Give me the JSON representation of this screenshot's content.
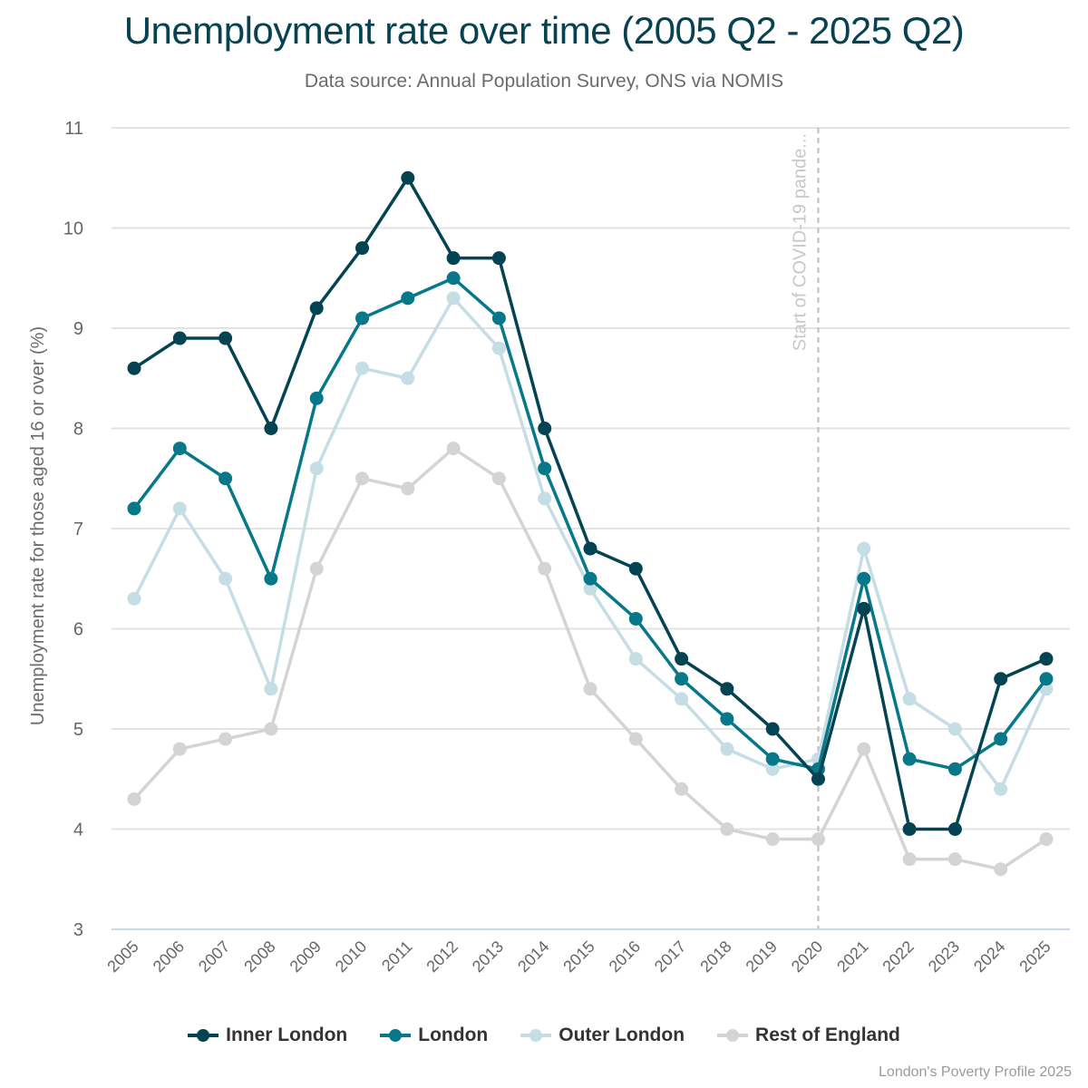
{
  "chart_data": {
    "type": "line",
    "title": "Unemployment rate over time (2005 Q2 - 2025 Q2)",
    "subtitle": "Data source: Annual Population Survey, ONS via NOMIS",
    "xlabel": "",
    "ylabel": "Unemployment rate for those aged 16 or over (%)",
    "ylim": [
      3,
      11
    ],
    "yticks": [
      3,
      4,
      5,
      6,
      7,
      8,
      9,
      10,
      11
    ],
    "grid": true,
    "legend_position": "bottom",
    "x": [
      "2005",
      "2006",
      "2007",
      "2008",
      "2009",
      "2010",
      "2011",
      "2012",
      "2013",
      "2014",
      "2015",
      "2016",
      "2017",
      "2018",
      "2019",
      "2020",
      "2021",
      "2022",
      "2023",
      "2024",
      "2025"
    ],
    "series": [
      {
        "name": "Rest of England",
        "color": "#d4d4d2",
        "values": [
          4.3,
          4.8,
          4.9,
          5.0,
          6.6,
          7.5,
          7.4,
          7.8,
          7.5,
          6.6,
          5.4,
          4.9,
          4.4,
          4.0,
          3.9,
          3.9,
          4.8,
          3.7,
          3.7,
          3.6,
          3.9
        ]
      },
      {
        "name": "Outer London",
        "color": "#c5dde4",
        "values": [
          6.3,
          7.2,
          6.5,
          5.4,
          7.6,
          8.6,
          8.5,
          9.3,
          8.8,
          7.3,
          6.4,
          5.7,
          5.3,
          4.8,
          4.6,
          4.7,
          6.8,
          5.3,
          5.0,
          4.4,
          5.4
        ]
      },
      {
        "name": "London",
        "color": "#06788a",
        "values": [
          7.2,
          7.8,
          7.5,
          6.5,
          8.3,
          9.1,
          9.3,
          9.5,
          9.1,
          7.6,
          6.5,
          6.1,
          5.5,
          5.1,
          4.7,
          4.6,
          6.5,
          4.7,
          4.6,
          4.9,
          5.5
        ]
      },
      {
        "name": "Inner London",
        "color": "#034352",
        "values": [
          8.6,
          8.9,
          8.9,
          8.0,
          9.2,
          9.8,
          10.5,
          9.7,
          9.7,
          8.0,
          6.8,
          6.6,
          5.7,
          5.4,
          5.0,
          4.5,
          6.2,
          4.0,
          4.0,
          5.5,
          5.7
        ]
      }
    ],
    "annotations": [
      {
        "type": "vertical-line",
        "x": "2020",
        "label": "Start of COVID-19 pande..."
      }
    ]
  },
  "legend": [
    {
      "label": "Inner London",
      "color": "#034352"
    },
    {
      "label": "London",
      "color": "#06788a"
    },
    {
      "label": "Outer London",
      "color": "#c5dde4"
    },
    {
      "label": "Rest of England",
      "color": "#d4d4d2"
    }
  ],
  "credit": "London's Poverty Profile 2025"
}
